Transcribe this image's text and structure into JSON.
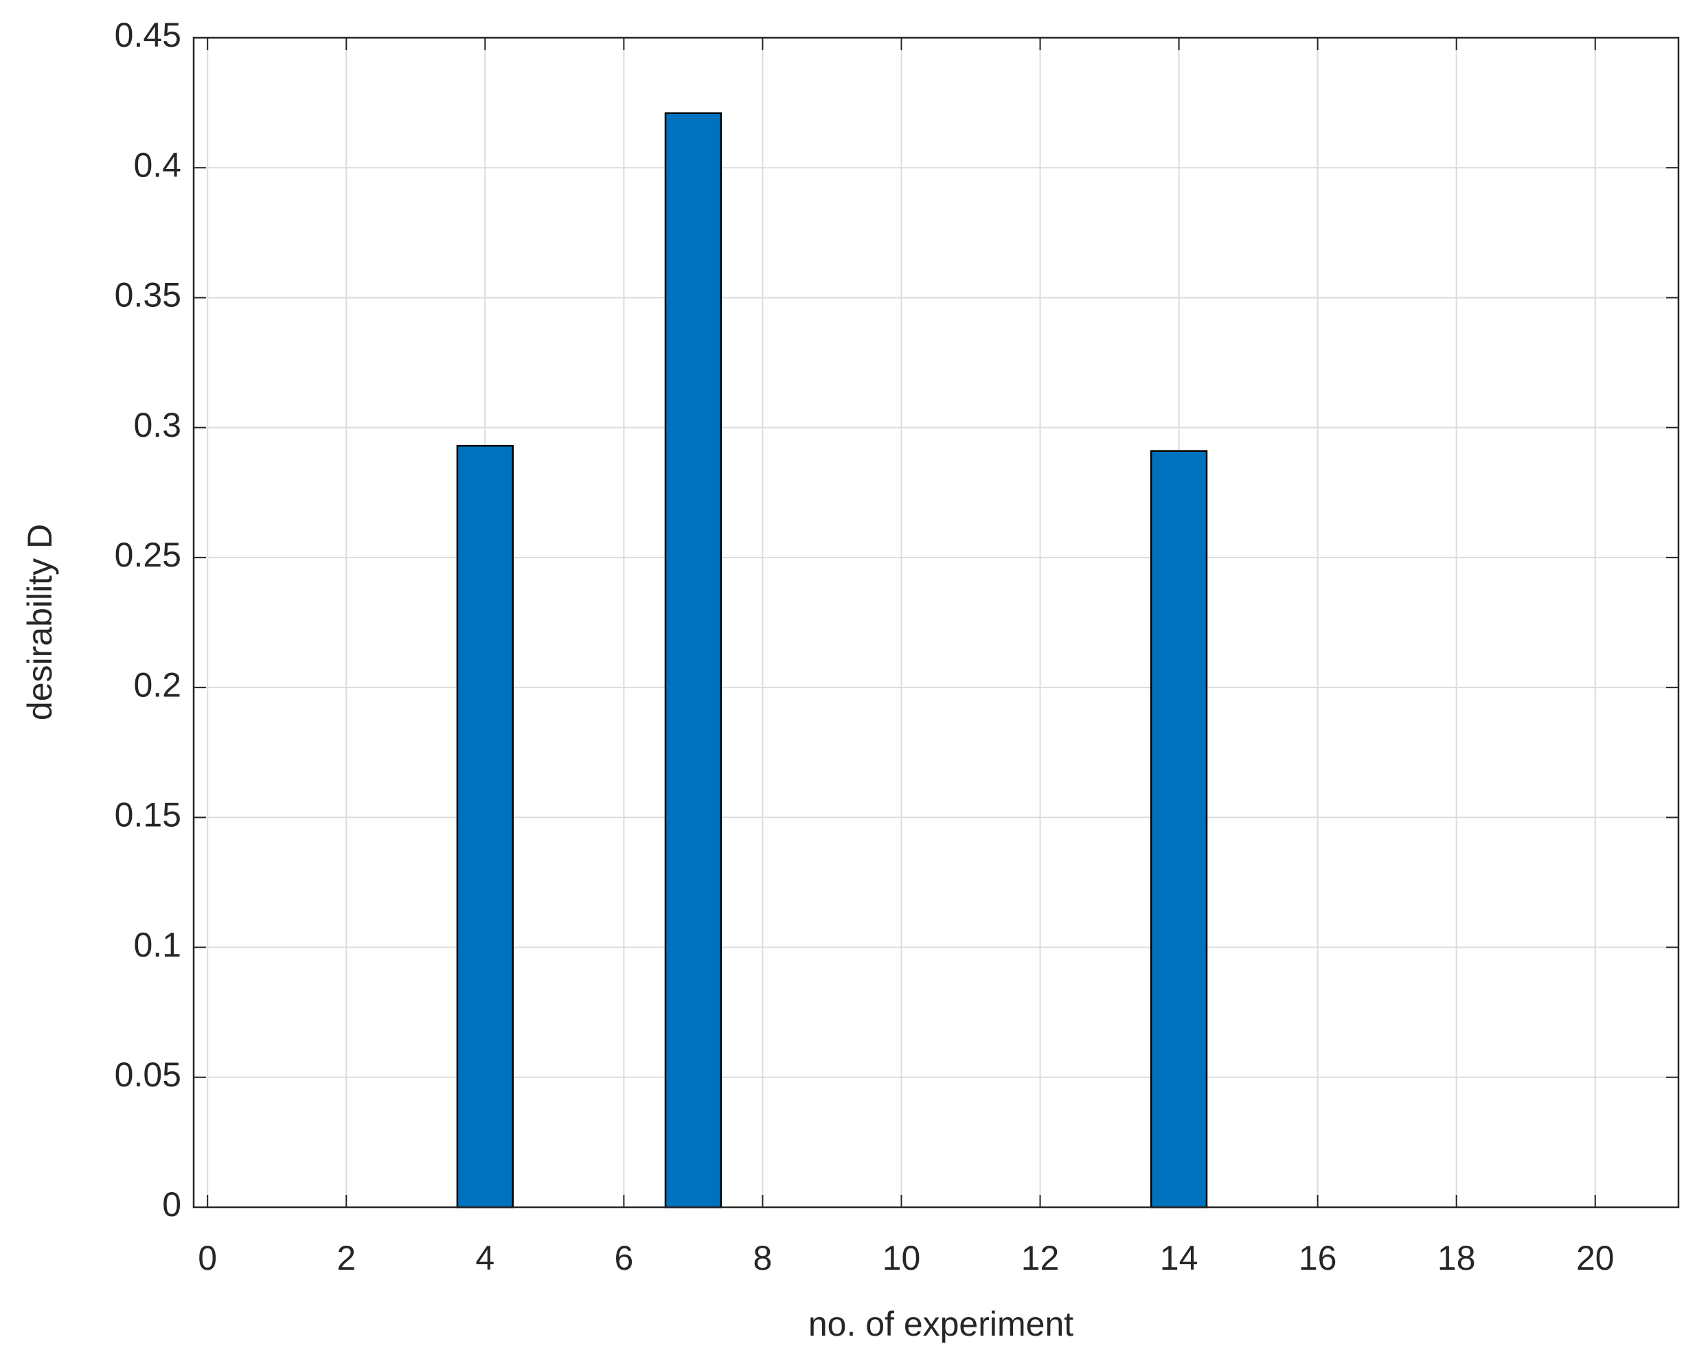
{
  "chart_data": {
    "type": "bar",
    "x_label": "no. of experiment",
    "y_label": "desirability D",
    "x": [
      4,
      7,
      14
    ],
    "values": [
      0.293,
      0.421,
      0.291
    ],
    "color": "#0072bd",
    "xlim": [
      -0.2,
      21.2
    ],
    "xticks": [
      0,
      2,
      4,
      6,
      8,
      10,
      12,
      14,
      16,
      18,
      20
    ],
    "ylim": [
      0,
      0.45
    ],
    "yticks": [
      0,
      0.05,
      0.1,
      0.15,
      0.2,
      0.25,
      0.3,
      0.35,
      0.4,
      0.45
    ],
    "grid": true
  }
}
